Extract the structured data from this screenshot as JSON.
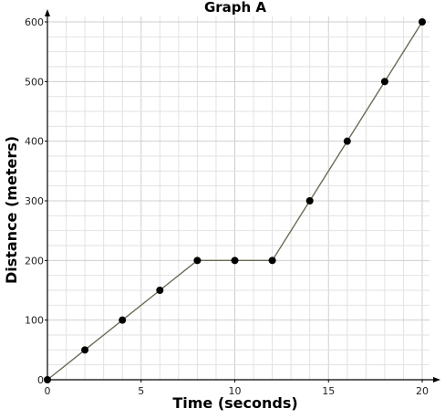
{
  "chart_data": {
    "type": "line",
    "title": "Graph A",
    "xlabel": "Time (seconds)",
    "ylabel": "Distance (meters)",
    "xlim": [
      0,
      20
    ],
    "ylim": [
      0,
      600
    ],
    "xticks": [
      0,
      5,
      10,
      15,
      20
    ],
    "yticks": [
      0,
      100,
      200,
      300,
      400,
      500,
      600
    ],
    "grid": true,
    "series": [
      {
        "x": [
          0,
          2,
          4,
          6,
          8,
          10,
          12,
          14,
          16,
          18,
          20
        ],
        "y": [
          0,
          50,
          100,
          150,
          200,
          200,
          200,
          300,
          400,
          500,
          600
        ],
        "color": "#6b6b55",
        "marker_color": "#000000"
      }
    ]
  }
}
